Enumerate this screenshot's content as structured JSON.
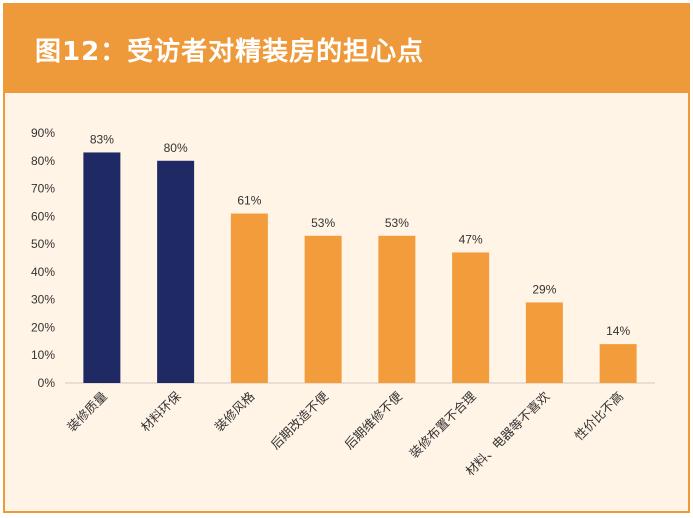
{
  "title": "图12：受访者对精装房的担心点",
  "colors": {
    "header": "#EE9A3A",
    "background": "#FFF4E6",
    "highlight_bar": "#1F2A64",
    "normal_bar": "#F39C3C"
  },
  "chart_data": {
    "type": "bar",
    "categories": [
      "装修质量",
      "材料环保",
      "装修风格",
      "后期改造不便",
      "后期维修不便",
      "装修布置不合理",
      "材料、电器等不喜欢",
      "性价比不高"
    ],
    "values": [
      83,
      80,
      61,
      53,
      53,
      47,
      29,
      14
    ],
    "data_labels": [
      "83%",
      "80%",
      "61%",
      "53%",
      "53%",
      "47%",
      "29%",
      "14%"
    ],
    "highlighted": [
      true,
      true,
      false,
      false,
      false,
      false,
      false,
      false
    ],
    "ylim": [
      0,
      90
    ],
    "yticks": [
      "0%",
      "10%",
      "20%",
      "30%",
      "40%",
      "50%",
      "60%",
      "70%",
      "80%",
      "90%"
    ],
    "grid": false,
    "legend": "none"
  }
}
